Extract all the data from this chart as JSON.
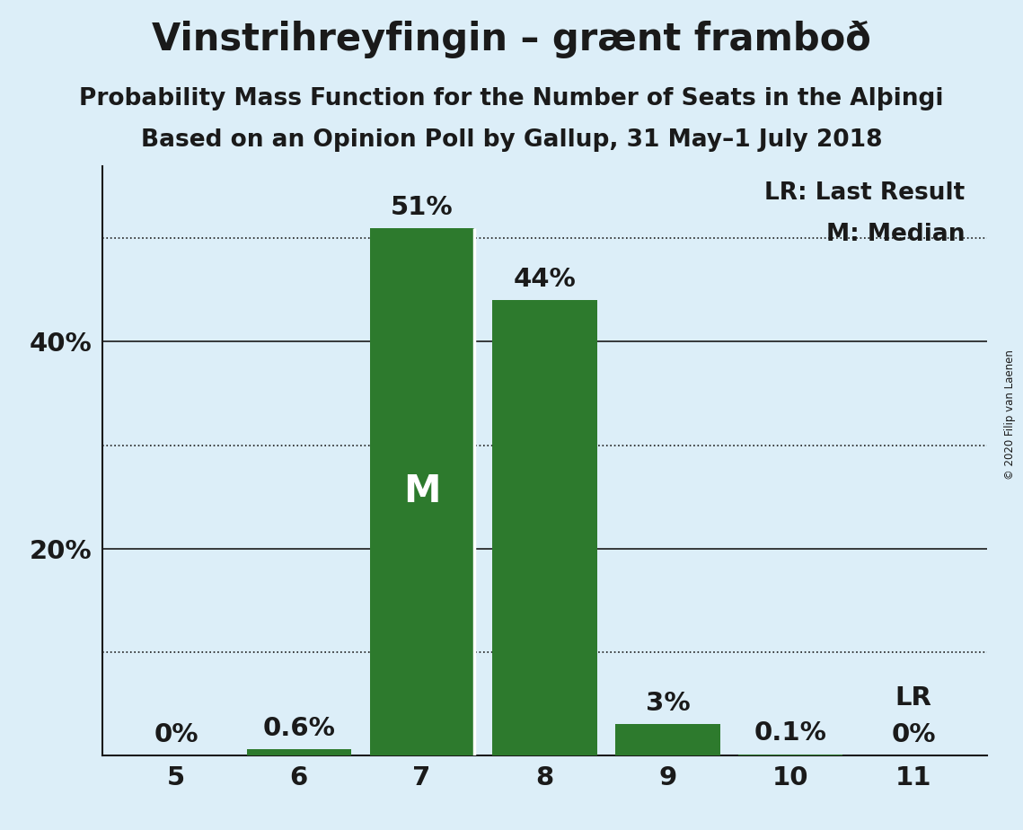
{
  "title": "Vinstrihreyfingin – grænt framboð",
  "subtitle1": "Probability Mass Function for the Number of Seats in the Alþingi",
  "subtitle2": "Based on an Opinion Poll by Gallup, 31 May–1 July 2018",
  "copyright": "© 2020 Filip van Laenen",
  "categories": [
    5,
    6,
    7,
    8,
    9,
    10,
    11
  ],
  "values": [
    0.0,
    0.6,
    51.0,
    44.0,
    3.0,
    0.1,
    0.0
  ],
  "bar_labels": [
    "0%",
    "0.6%",
    "51%",
    "44%",
    "3%",
    "0.1%",
    "0%"
  ],
  "bar_color": "#2d7a2d",
  "background_color": "#dceef8",
  "median_seat": 7,
  "lr_seat": 11,
  "median_label": "M",
  "solid_yticks": [
    20,
    40
  ],
  "dotted_yticks": [
    10,
    30,
    50
  ],
  "ylim": [
    0,
    57
  ],
  "legend_lr_text": "LR: Last Result",
  "legend_m_text": "M: Median",
  "title_fontsize": 30,
  "subtitle_fontsize": 19,
  "tick_fontsize": 21,
  "bar_label_fontsize": 21,
  "median_label_fontsize": 30,
  "legend_fontsize": 19
}
